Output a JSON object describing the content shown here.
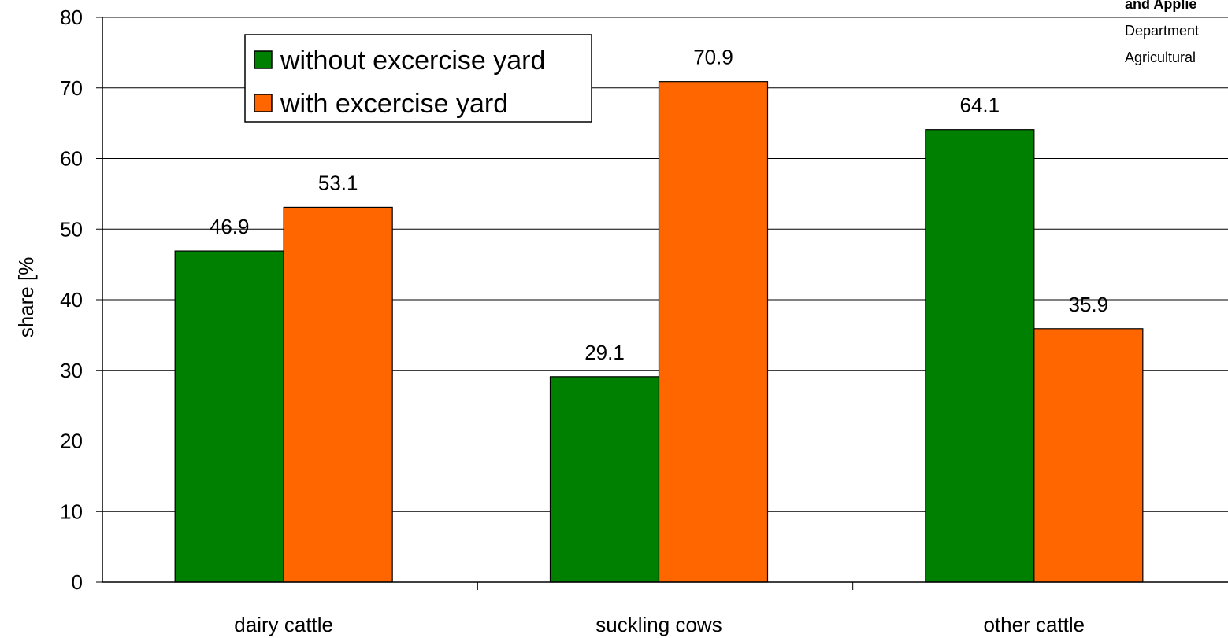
{
  "chart_data": {
    "type": "bar",
    "title": "",
    "xlabel": "",
    "ylabel": "share [%",
    "ylim": [
      0,
      80
    ],
    "yticks": [
      0,
      10,
      20,
      30,
      40,
      50,
      60,
      70,
      80
    ],
    "grid": true,
    "legend_position": "top-left",
    "categories": [
      "dairy cattle",
      "suckling cows",
      "other cattle"
    ],
    "series": [
      {
        "name": "without excercise yard",
        "color": "#008000",
        "values": [
          46.9,
          29.1,
          64.1
        ]
      },
      {
        "name": "with excercise yard",
        "color": "#FF6600",
        "values": [
          53.1,
          70.9,
          35.9
        ]
      }
    ]
  },
  "corner_note": {
    "line1": "and Applie",
    "line2": "Department",
    "line3": "Agricultural"
  }
}
